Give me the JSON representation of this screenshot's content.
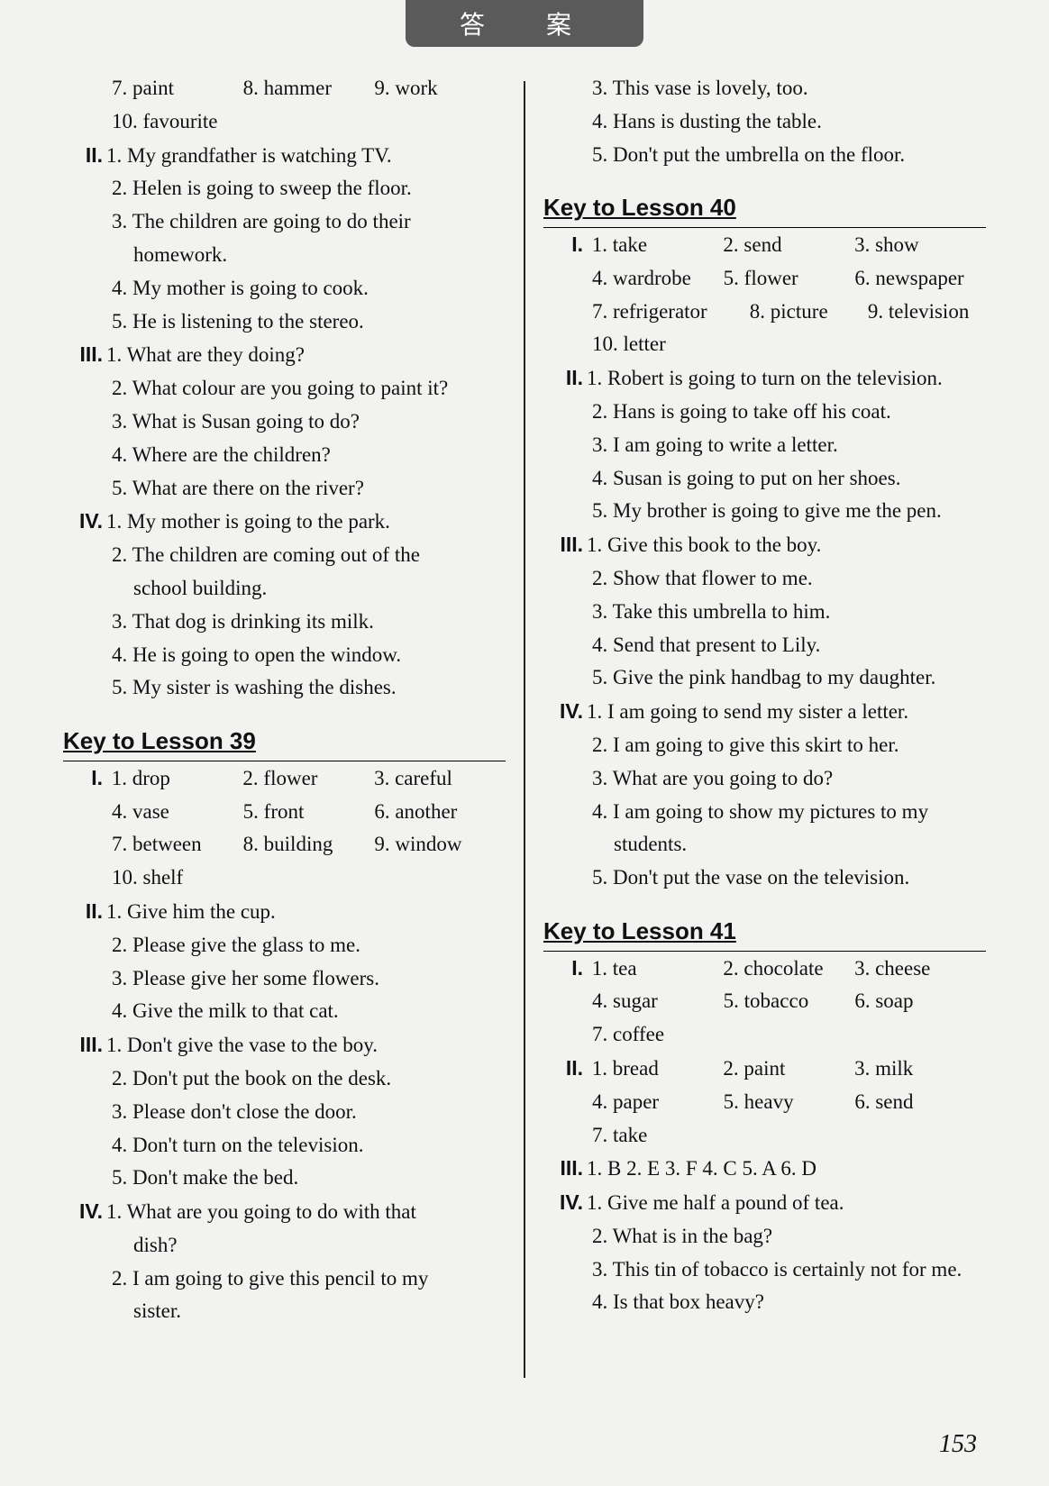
{
  "header": "答　案",
  "pagenum": "153",
  "left": {
    "topVocab": [
      "7. paint",
      "8. hammer",
      "9. work"
    ],
    "topVocab2": "10. favourite",
    "II": [
      "1. My grandfather is watching TV.",
      "2. Helen is going to sweep the floor.",
      "3. The children are going to do their",
      "    homework.",
      "4. My mother is going to cook.",
      "5. He is listening to the stereo."
    ],
    "III": [
      "1. What are they doing?",
      "2. What colour are you going to paint it?",
      "3. What is Susan going to do?",
      "4. Where are the children?",
      "5. What are there on the river?"
    ],
    "IV": [
      "1. My mother is going to the park.",
      "2. The children are coming out of the",
      "    school building.",
      "3. That dog is drinking its milk.",
      "4. He is going to open the window.",
      "5. My sister is washing the dishes."
    ],
    "lesson39": "Key to Lesson 39",
    "l39_I_rows": [
      [
        "1. drop",
        "2. flower",
        "3. careful"
      ],
      [
        "4. vase",
        "5. front",
        "6. another"
      ],
      [
        "7. between",
        "8. building",
        "9. window"
      ]
    ],
    "l39_I_last": "10. shelf",
    "l39_II": [
      "1. Give him the cup.",
      "2. Please give the glass to me.",
      "3. Please give her some flowers.",
      "4. Give the milk to that cat."
    ],
    "l39_III": [
      "1. Don't give the vase to the boy.",
      "2. Don't put the book on the desk.",
      "3. Please don't close the door.",
      "4. Don't turn on the television.",
      "5. Don't make the bed."
    ],
    "l39_IV": [
      "1. What are you going to do with that",
      "    dish?",
      "2. I am going to give this pencil to my",
      "    sister."
    ]
  },
  "right": {
    "topCont": [
      "3. This vase is lovely, too.",
      "4. Hans is dusting the table.",
      "5. Don't put the umbrella on the floor."
    ],
    "lesson40": "Key to Lesson 40",
    "l40_I_rows": [
      [
        "1. take",
        "2. send",
        "3. show"
      ],
      [
        "4. wardrobe",
        "5. flower",
        "6. newspaper"
      ],
      [
        "7. refrigerator",
        "8. picture",
        "9. television"
      ]
    ],
    "l40_I_last": "10. letter",
    "l40_II": [
      "1. Robert is going to turn on the television.",
      "2. Hans is going to take off his coat.",
      "3. I am going to write a letter.",
      "4. Susan is going to put on her shoes.",
      "5. My brother is going to give me the pen."
    ],
    "l40_III": [
      "1. Give this book to the boy.",
      "2. Show that flower to me.",
      "3. Take this umbrella to him.",
      "4. Send that present to Lily.",
      "5. Give the pink handbag to my daughter."
    ],
    "l40_IV": [
      "1. I am going to send my sister a letter.",
      "2. I am going to give this skirt to her.",
      "3. What are you going to do?",
      "4. I am going to show my pictures to my",
      "    students.",
      "5. Don't put the vase on the television."
    ],
    "lesson41": "Key to Lesson 41",
    "l41_I_rows": [
      [
        "1. tea",
        "2. chocolate",
        "3. cheese"
      ],
      [
        "4. sugar",
        "5. tobacco",
        "6. soap"
      ]
    ],
    "l41_I_last": "7. coffee",
    "l41_II_rows": [
      [
        "1. bread",
        "2. paint",
        "3. milk"
      ],
      [
        "4. paper",
        "5. heavy",
        "6. send"
      ]
    ],
    "l41_II_last": "7. take",
    "l41_III": "1. B    2. E    3. F    4. C    5. A    6. D",
    "l41_IV": [
      "1. Give me half a pound of tea.",
      "2. What is in the bag?",
      "3. This tin of tobacco is certainly not for me.",
      "4. Is that box heavy?"
    ]
  }
}
